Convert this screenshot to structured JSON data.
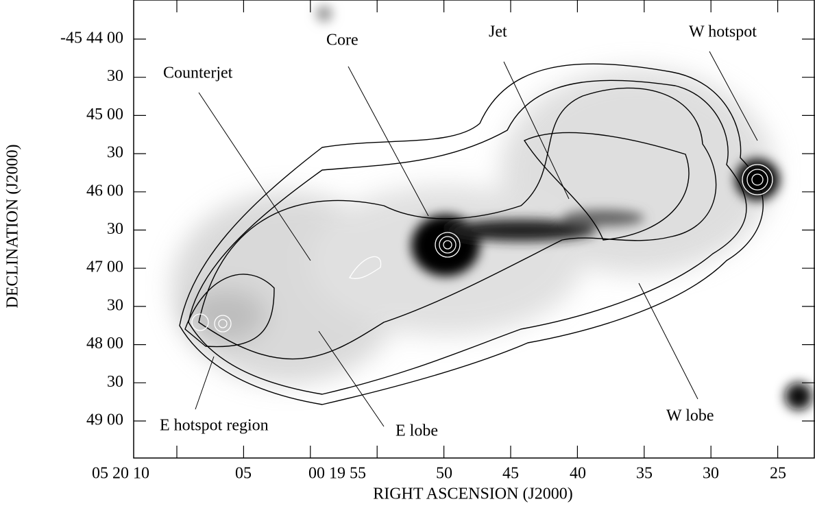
{
  "axes": {
    "x_label": "RIGHT ASCENSION (J2000)",
    "y_label": "DECLINATION (J2000)",
    "x_ticks": [
      "05 20 10",
      "05",
      "00 19 55",
      "50",
      "45",
      "40",
      "35",
      "30",
      "25"
    ],
    "y_ticks": [
      "-45 44 00",
      "30",
      "45 00",
      "30",
      "46 00",
      "30",
      "47 00",
      "30",
      "48 00",
      "30",
      "49 00"
    ]
  },
  "annotations": [
    "Counterjet",
    "Core",
    "Jet",
    "W hotspot",
    "E hotspot region",
    "E lobe",
    "W lobe"
  ]
}
